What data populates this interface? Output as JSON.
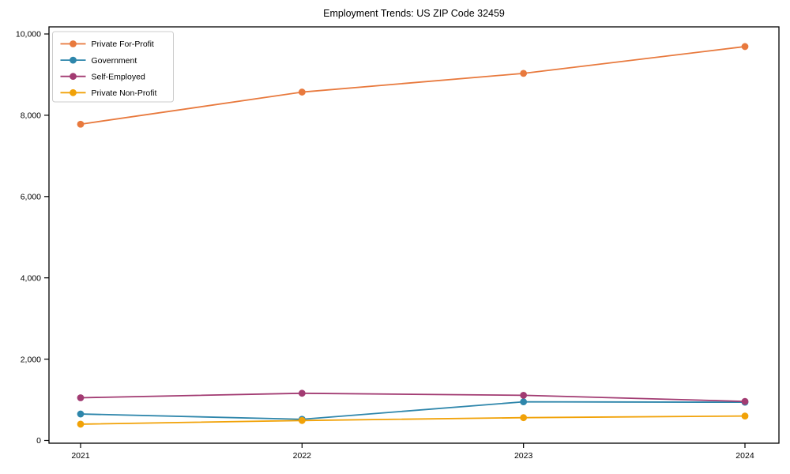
{
  "figure": {
    "background": "#ffffff",
    "spine_color": "#000000",
    "legend_border_color": "#cccccc",
    "legend_background": "#ffffff"
  },
  "chart_data": {
    "type": "line",
    "title": "Employment Trends: US ZIP Code 32459",
    "categories": [
      "2021",
      "2022",
      "2023",
      "2024"
    ],
    "series": [
      {
        "name": "Private For-Profit",
        "color": "#E8793D",
        "values": [
          7780,
          8570,
          9030,
          9690
        ]
      },
      {
        "name": "Government",
        "color": "#2E86AB",
        "values": [
          650,
          520,
          950,
          940
        ]
      },
      {
        "name": "Self-Employed",
        "color": "#A23B72",
        "values": [
          1050,
          1160,
          1110,
          960
        ]
      },
      {
        "name": "Private Non-Profit",
        "color": "#F1A208",
        "values": [
          400,
          490,
          560,
          600
        ]
      }
    ],
    "xlabel": "",
    "ylabel": "",
    "ylim": [
      0,
      10000
    ],
    "yticks": [
      0,
      2000,
      4000,
      6000,
      8000,
      10000
    ],
    "ytick_labels": [
      "0",
      "2,000",
      "4,000",
      "6,000",
      "8,000",
      "10,000"
    ],
    "grid": false,
    "legend_position": "upper-left",
    "marker": "circle"
  }
}
